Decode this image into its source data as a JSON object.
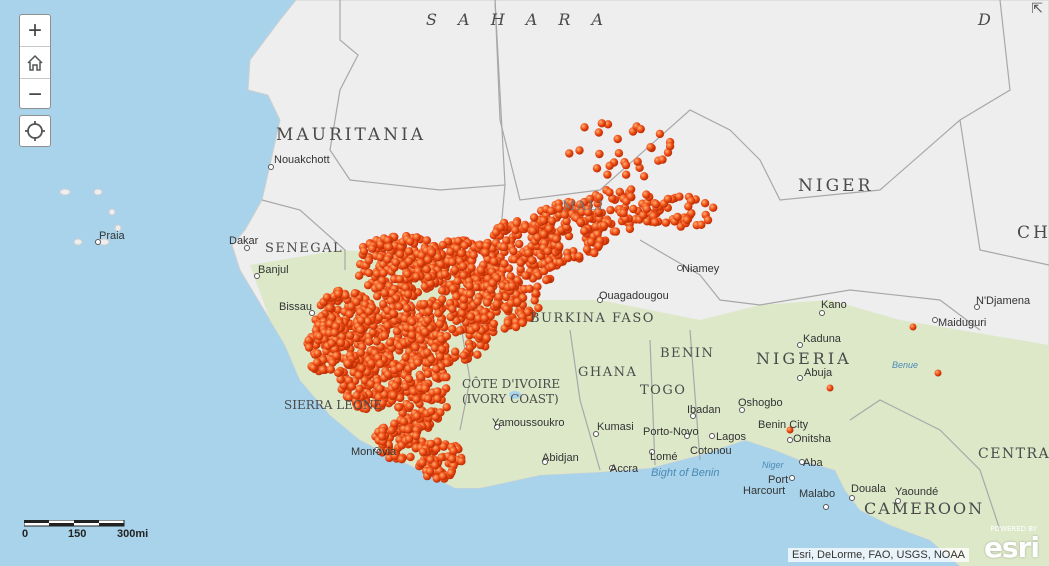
{
  "map": {
    "region_labels": {
      "sahara": "S A H A R A",
      "sahara_d": "D",
      "mauritania": "MAURITANIA",
      "niger": "NIGER",
      "ch": "CH",
      "senegal": "SENEGAL",
      "mali": "MALI",
      "burkina_faso": "BURKINA FASO",
      "ghana": "GHANA",
      "benin": "BENIN",
      "togo": "TOGO",
      "nigeria": "NIGERIA",
      "cote_divoire": "CÔTE D'IVOIRE",
      "ivory_coast": "(IVORY COAST)",
      "sierra_leone": "SIERRA LEONE",
      "central": "CENTRA",
      "cameroon": "CAMEROON"
    },
    "cities": {
      "nouakchott": "Nouakchott",
      "praia": "Praia",
      "dakar": "Dakar",
      "banjul": "Banjul",
      "bissau": "Bissau",
      "niamey": "Niamey",
      "ouagadougou": "Ouagadougou",
      "kano": "Kano",
      "ndjamena": "N'Djamena",
      "maiduguri": "Maiduguri",
      "kaduna": "Kaduna",
      "abuja": "Abuja",
      "benue": "Benue",
      "yamoussoukro": "Yamoussoukro",
      "kumasi": "Kumasi",
      "porto_novo": "Porto-Novo",
      "ibadan": "Ibadan",
      "oshogbo": "Oshogbo",
      "lagos": "Lagos",
      "benin_city": "Benin City",
      "onitsha": "Onitsha",
      "monrovia": "Monrovia",
      "abidjan": "Abidjan",
      "accra": "Accra",
      "lome": "Lomé",
      "cotonou": "Cotonou",
      "bight_of_benin": "Bight of Benin",
      "aba": "Aba",
      "port_harcourt_1": "Port",
      "port_harcourt_2": "Harcourt",
      "malabo": "Malabo",
      "douala": "Douala",
      "yaounde": "Yaoundé",
      "niger_river": "Niger"
    }
  },
  "controls": {
    "zoom_in": "+",
    "zoom_out": "−"
  },
  "scale": {
    "zero": "0",
    "mid": "150",
    "max": "300mi"
  },
  "attribution": "Esri, DeLorme, FAO, USGS, NOAA",
  "logo": {
    "sub": "POWERED BY",
    "name": "esri"
  },
  "colors": {
    "ocean": "#a9d3ea",
    "land": "#eeeeee",
    "veg": "#dde8c9",
    "points": "#ee4a14"
  }
}
